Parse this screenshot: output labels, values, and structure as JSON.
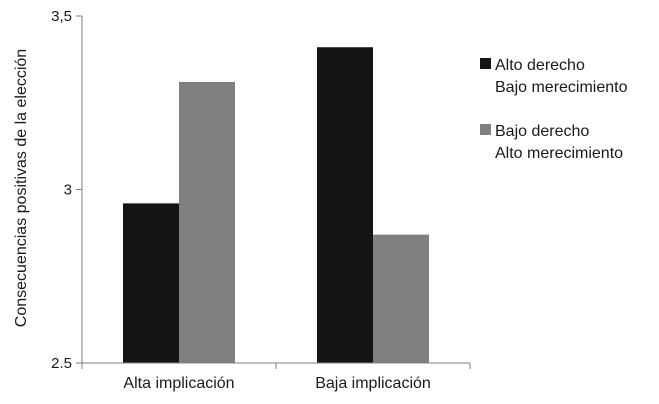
{
  "chart_data": {
    "type": "bar",
    "title": "",
    "xlabel": "",
    "ylabel": "Consecuencias positivas de la elección",
    "categories": [
      "Alta implicación",
      "Baja implicación"
    ],
    "series": [
      {
        "name_lines": [
          "Alto derecho",
          "Bajo merecimiento"
        ],
        "color": "#141414",
        "values": [
          2.96,
          3.41
        ]
      },
      {
        "name_lines": [
          "Bajo derecho",
          "Alto merecimiento"
        ],
        "color": "#808080",
        "values": [
          3.31,
          2.87
        ]
      }
    ],
    "ylim": [
      2.5,
      3.5
    ],
    "y_ticks": [
      {
        "value": 2.5,
        "label": "2.5"
      },
      {
        "value": 3,
        "label": "3"
      },
      {
        "value": 3.5,
        "label": "3,5"
      }
    ],
    "grid": false,
    "legend_position": "right"
  }
}
